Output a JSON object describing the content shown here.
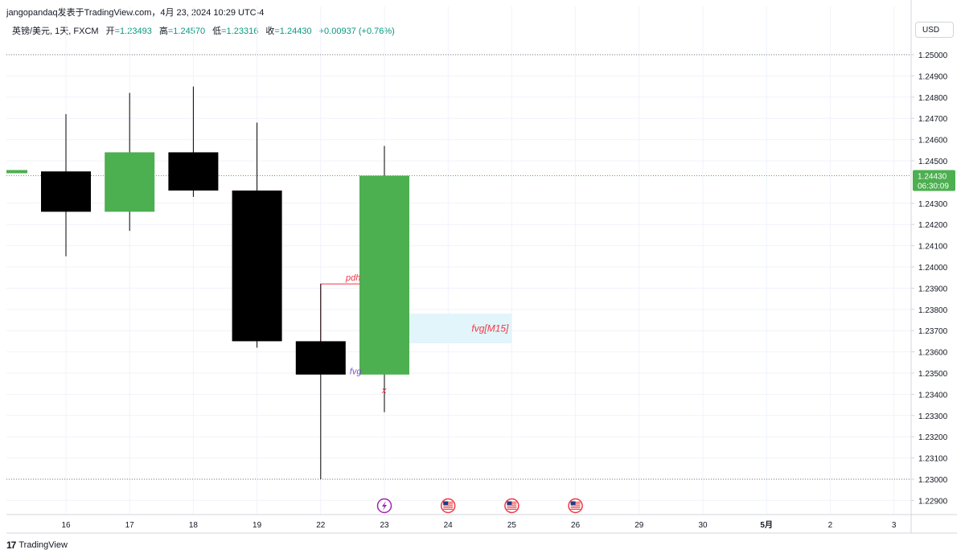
{
  "header": {
    "text": "jangopandaq发表于TradingView.com，4月 23, 2024 10:29 UTC-4"
  },
  "legend": {
    "symbol": "英镑/美元, 1天, FXCM",
    "open_label": "开",
    "open": "=1.23493",
    "high_label": "高",
    "high": "=1.24570",
    "low_label": "低",
    "low": "=1.23316",
    "close_label": "收",
    "close": "=1.24430",
    "change": "+0.00937 (+0.76%)"
  },
  "currency_button": "USD",
  "footer": {
    "brand": "TradingView",
    "logo": "17"
  },
  "colors": {
    "up": "#4caf50",
    "down": "#000000",
    "pdh_line": "#f23645",
    "fvg_box": "#e1f5fa",
    "price_tag": "#4caf50"
  },
  "chart_data": {
    "type": "candlestick",
    "symbol": "GBP/USD",
    "timeframe": "1D",
    "candles": [
      {
        "x": "16",
        "open": 1.2445,
        "high": 1.2472,
        "low": 1.2405,
        "close": 1.2426
      },
      {
        "x": "17",
        "open": 1.2426,
        "high": 1.2482,
        "low": 1.2417,
        "close": 1.2454
      },
      {
        "x": "18",
        "open": 1.2454,
        "high": 1.2485,
        "low": 1.2433,
        "close": 1.2436
      },
      {
        "x": "19",
        "open": 1.2436,
        "high": 1.2468,
        "low": 1.2362,
        "close": 1.2365
      },
      {
        "x": "22",
        "open": 1.2365,
        "high": 1.2392,
        "low": 1.23,
        "close": 1.23493
      },
      {
        "x": "23",
        "open": 1.23493,
        "high": 1.2457,
        "low": 1.23316,
        "close": 1.2443
      }
    ],
    "x_ticks": [
      "16",
      "17",
      "18",
      "19",
      "22",
      "23",
      "24",
      "25",
      "26",
      "29",
      "30",
      "5月",
      "2",
      "3"
    ],
    "y_ticks": [
      "1.25000",
      "1.24900",
      "1.24800",
      "1.24700",
      "1.24600",
      "1.24500",
      "1.24300",
      "1.24200",
      "1.24100",
      "1.24000",
      "1.23900",
      "1.23800",
      "1.23700",
      "1.23600",
      "1.23500",
      "1.23400",
      "1.23300",
      "1.23200",
      "1.23100",
      "1.23000",
      "1.22900"
    ],
    "ylim": [
      1.2285,
      1.2505
    ],
    "last_price": {
      "value": "1.24430",
      "countdown": "06:30:09"
    },
    "horizontal_lines": [
      1.25,
      1.23
    ],
    "annotations": [
      {
        "label": "pdh",
        "from_x": "22",
        "to_x": "23",
        "price": 1.2392
      },
      {
        "label": "fvg[M15]",
        "from_x": "23",
        "to_x": "25",
        "top": 1.2378,
        "bottom": 1.2364
      },
      {
        "label": "fvg",
        "x": "22",
        "price": 1.2351
      },
      {
        "label": "x",
        "x": "23",
        "price": 1.2342
      }
    ],
    "event_icons": [
      {
        "x": "23",
        "icon": "lightning-icon"
      },
      {
        "x": "24",
        "icon": "us-flag-icon"
      },
      {
        "x": "25",
        "icon": "us-flag-icon"
      },
      {
        "x": "26",
        "icon": "us-flag-icon"
      }
    ]
  }
}
